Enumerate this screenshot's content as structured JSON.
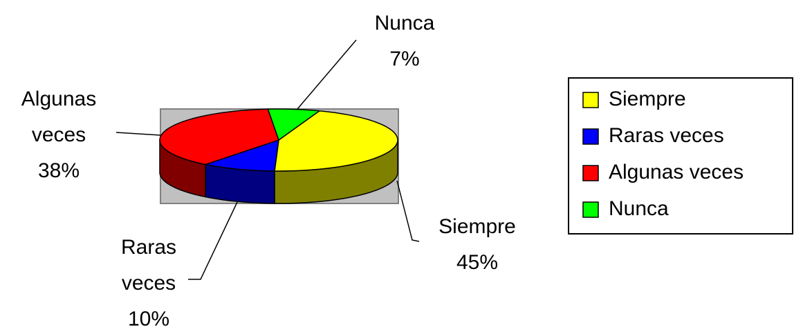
{
  "chart_data": {
    "type": "pie",
    "categories": [
      "Siempre",
      "Raras veces",
      "Algunas veces",
      "Nunca"
    ],
    "values": [
      45,
      10,
      38,
      7
    ],
    "value_labels": [
      "45%",
      "10%",
      "38%",
      "7%"
    ],
    "colors": [
      "#ffff00",
      "#0000ff",
      "#ff0000",
      "#00ff00"
    ],
    "legend": "right"
  }
}
